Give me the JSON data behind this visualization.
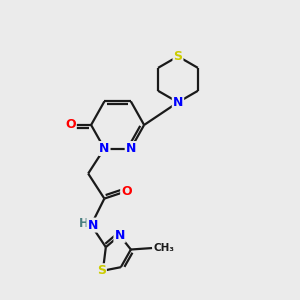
{
  "bg_color": "#ebebeb",
  "atom_color_N": "#0000ff",
  "atom_color_O": "#ff0000",
  "atom_color_S": "#cccc00",
  "atom_color_H": "#4a8080",
  "bond_color": "#1a1a1a",
  "bond_width": 1.6,
  "figsize": [
    3.0,
    3.0
  ],
  "dpi": 100,
  "xlim": [
    0,
    10
  ],
  "ylim": [
    0,
    10
  ]
}
